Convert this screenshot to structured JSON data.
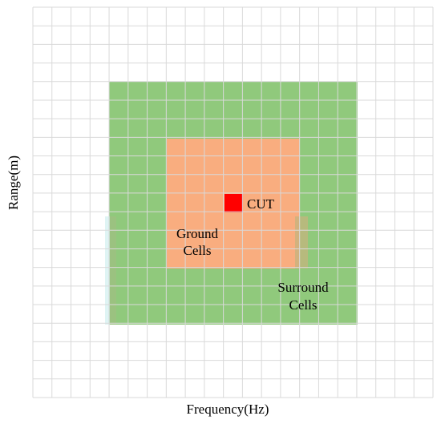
{
  "diagram": {
    "axis_labels": {
      "x": "Frequency(Hz)",
      "y": "Range(m)"
    },
    "regions": {
      "surround": {
        "label_line1": "Surround",
        "label_line2": "Cells",
        "color": "#90c97c"
      },
      "ground": {
        "label_line1": "Ground",
        "label_line2": "Cells",
        "color": "#f9ad7f"
      },
      "cut": {
        "label": "CUT",
        "color": "#ff0000"
      }
    },
    "grid": {
      "columns": 21,
      "rows": 21,
      "line_color": "#d9d9d9"
    }
  }
}
